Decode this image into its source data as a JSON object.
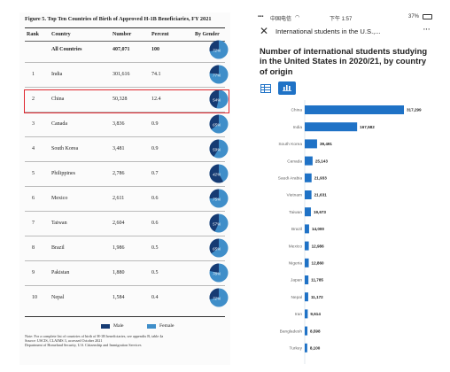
{
  "report": {
    "figure_title": "Figure 5. Top Ten Countries of Birth of Approved H-1B Beneficiaries, FY 2021",
    "headers": {
      "rank": "Rank",
      "country": "Country",
      "number": "Number",
      "percent": "Percent",
      "gender": "By Gender"
    },
    "colors": {
      "male": "#163b73",
      "female": "#3f8ec9"
    },
    "rows": [
      {
        "rank": "",
        "country": "All Countries",
        "number": "407,071",
        "percent": "100",
        "female_pct_label": "72%",
        "female_fraction": 0.72
      },
      {
        "rank": "1",
        "country": "India",
        "number": "301,616",
        "percent": "74.1",
        "female_pct_label": "77%",
        "female_fraction": 0.77
      },
      {
        "rank": "2",
        "country": "China",
        "number": "50,328",
        "percent": "12.4",
        "female_pct_label": "54%",
        "female_fraction": 0.54
      },
      {
        "rank": "3",
        "country": "Canada",
        "number": "3,836",
        "percent": "0.9",
        "female_pct_label": "65%",
        "female_fraction": 0.65
      },
      {
        "rank": "4",
        "country": "South Korea",
        "number": "3,481",
        "percent": "0.9",
        "female_pct_label": "59%",
        "female_fraction": 0.59
      },
      {
        "rank": "5",
        "country": "Philippines",
        "number": "2,786",
        "percent": "0.7",
        "female_pct_label": "42%",
        "female_fraction": 0.42
      },
      {
        "rank": "6",
        "country": "Mexico",
        "number": "2,611",
        "percent": "0.6",
        "female_pct_label": "75%",
        "female_fraction": 0.75
      },
      {
        "rank": "7",
        "country": "Taiwan",
        "number": "2,604",
        "percent": "0.6",
        "female_pct_label": "57%",
        "female_fraction": 0.57
      },
      {
        "rank": "8",
        "country": "Brazil",
        "number": "1,986",
        "percent": "0.5",
        "female_pct_label": "65%",
        "female_fraction": 0.65
      },
      {
        "rank": "9",
        "country": "Pakistan",
        "number": "1,880",
        "percent": "0.5",
        "female_pct_label": "78%",
        "female_fraction": 0.78
      },
      {
        "rank": "10",
        "country": "Nepal",
        "number": "1,584",
        "percent": "0.4",
        "female_pct_label": "72%",
        "female_fraction": 0.72
      }
    ],
    "legend": {
      "male": "Male",
      "female": "Female"
    },
    "note": [
      "Note: For a complete list of countries of birth of H-1B beneficiaries, see appendix B, table 4a",
      "Source: USCIS, CLAIMS 3, accessed October 2021",
      "Department of Homeland Security, U.S. Citizenship and Immigration Services"
    ]
  },
  "phone": {
    "status_bar": {
      "carrier": "中国电信",
      "time": "下午 1:57",
      "battery": "37%"
    },
    "page_url": "International students in the U.S.,...",
    "title": "Number of international students studying in the United States in 2020/21, by country of origin",
    "bar_color": "#1f72c6",
    "view_toggle": {
      "active": "bar",
      "options": [
        "table-icon",
        "bar-chart-icon"
      ]
    }
  },
  "chart_data": {
    "type": "bar",
    "orientation": "horizontal",
    "title": "Number of international students studying in the United States in 2020/21, by country of origin",
    "categories": [
      "China",
      "India",
      "South Korea",
      "Canada",
      "Saudi Arabia",
      "Vietnam",
      "Taiwan",
      "Brazil",
      "Mexico",
      "Nigeria",
      "Japan",
      "Nepal",
      "Iran",
      "Bangladesh",
      "Turkey"
    ],
    "values": [
      317299,
      167582,
      39491,
      25143,
      21933,
      21631,
      19673,
      14000,
      12986,
      12860,
      11785,
      11172,
      9614,
      8598,
      8100
    ],
    "value_labels": [
      "317,299",
      "167,582",
      "39,491",
      "25,143",
      "21,933",
      "21,631",
      "19,673",
      "14,000",
      "12,986",
      "12,860",
      "11,785",
      "11,172",
      "9,614",
      "8,598",
      "8,100"
    ]
  }
}
